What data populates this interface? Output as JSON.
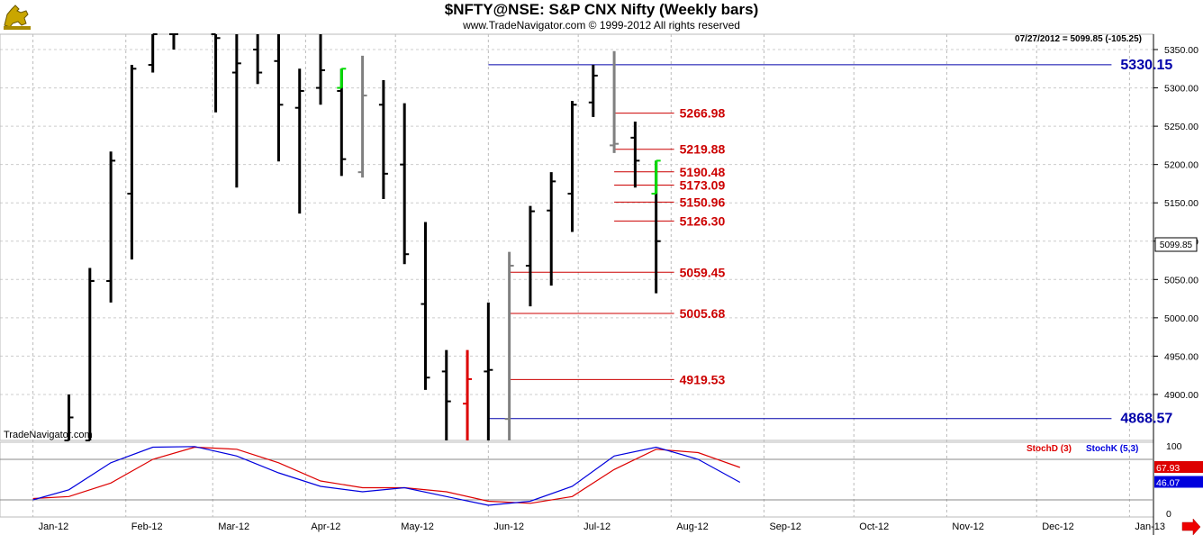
{
  "header": {
    "title": "$NFTY@NSE:  S&P CNX Nifty  (Weekly bars)",
    "subtitle": "www.TradeNavigator.com © 1999-2012 All rights reserved",
    "logo_icon": "gold-bull-icon"
  },
  "watermark": "TradeNavigator.com",
  "readout": "07/27/2012 = 5099.85 (-105.25)",
  "last_price_label": "5099.85",
  "chart_data": [
    {
      "type": "ohlc",
      "title": "$NFTY@NSE:  S&P CNX Nifty  (Weekly bars)",
      "ylim": [
        4840,
        5370
      ],
      "y_ticks": [
        4900,
        4950,
        5000,
        5050,
        5100,
        5150,
        5200,
        5250,
        5300,
        5350
      ],
      "y_tick_labels": [
        "4900.00",
        "4950.00",
        "5000.00",
        "5050.00",
        "5100.00",
        "5150.00",
        "5200.00",
        "5250.00",
        "5300.00",
        "5350.00"
      ],
      "x_ticks": [
        "2012-01-01",
        "2012-02-01",
        "2012-03-01",
        "2012-04-01",
        "2012-05-01",
        "2012-06-01",
        "2012-07-01",
        "2012-08-01",
        "2012-09-01",
        "2012-10-01",
        "2012-11-01",
        "2012-12-01",
        "2013-01-01"
      ],
      "x_tick_labels": [
        "Jan-12",
        "Feb-12",
        "Mar-12",
        "Apr-12",
        "May-12",
        "Jun-12",
        "Jul-12",
        "Aug-12",
        "Sep-12",
        "Oct-12",
        "Nov-12",
        "Dec-12",
        "Jan-13"
      ],
      "xlim": [
        "2011-12-21",
        "2013-01-09"
      ],
      "colors": {
        "up": "#000000",
        "gray": "#808080",
        "green": "#00dd00",
        "red": "#dd0000"
      },
      "bars": [
        {
          "date": "2012-01-13",
          "open": 4840,
          "high": 4900,
          "low": 4840,
          "close": 4870,
          "color": "up"
        },
        {
          "date": "2012-01-20",
          "open": 4840,
          "high": 5065,
          "low": 4840,
          "close": 5048,
          "color": "up"
        },
        {
          "date": "2012-01-27",
          "open": 5048,
          "high": 5217,
          "low": 5020,
          "close": 5205,
          "color": "up"
        },
        {
          "date": "2012-02-03",
          "open": 5162,
          "high": 5330,
          "low": 5076,
          "close": 5325,
          "color": "up"
        },
        {
          "date": "2012-02-10",
          "open": 5330,
          "high": 5370,
          "low": 5320,
          "close": 5370,
          "color": "up"
        },
        {
          "date": "2012-02-17",
          "open": 5370,
          "high": 5370,
          "low": 5350,
          "close": 5370,
          "color": "up"
        },
        {
          "date": "2012-03-02",
          "open": 5370,
          "high": 5370,
          "low": 5268,
          "close": 5365,
          "color": "up"
        },
        {
          "date": "2012-03-09",
          "open": 5320,
          "high": 5370,
          "low": 5170,
          "close": 5332,
          "color": "up"
        },
        {
          "date": "2012-03-16",
          "open": 5350,
          "high": 5370,
          "low": 5305,
          "close": 5320,
          "color": "up"
        },
        {
          "date": "2012-03-23",
          "open": 5335,
          "high": 5370,
          "low": 5204,
          "close": 5278,
          "color": "up"
        },
        {
          "date": "2012-03-30",
          "open": 5274,
          "high": 5325,
          "low": 5136,
          "close": 5296,
          "color": "up"
        },
        {
          "date": "2012-04-06",
          "open": 5300,
          "high": 5370,
          "low": 5278,
          "close": 5323,
          "color": "up"
        },
        {
          "date": "2012-04-13",
          "open": 5296,
          "high": 5325,
          "low": 5185,
          "close": 5207,
          "color": "up"
        },
        {
          "date": "2012-04-13",
          "open": 5300,
          "high": 5325,
          "low": 5300,
          "close": 5325,
          "color": "green"
        },
        {
          "date": "2012-04-20",
          "open": 5190,
          "high": 5342,
          "low": 5183,
          "close": 5290,
          "color": "gray"
        },
        {
          "date": "2012-04-27",
          "open": 5278,
          "high": 5310,
          "low": 5155,
          "close": 5188,
          "color": "up"
        },
        {
          "date": "2012-05-04",
          "open": 5200,
          "high": 5280,
          "low": 5070,
          "close": 5083,
          "color": "up"
        },
        {
          "date": "2012-05-11",
          "open": 5018,
          "high": 5125,
          "low": 4906,
          "close": 4922,
          "color": "up"
        },
        {
          "date": "2012-05-18",
          "open": 4930,
          "high": 4958,
          "low": 4840,
          "close": 4891,
          "color": "up"
        },
        {
          "date": "2012-05-25",
          "open": 4888,
          "high": 4958,
          "low": 4840,
          "close": 4920,
          "color": "red"
        },
        {
          "date": "2012-06-01",
          "open": 4930,
          "high": 5020,
          "low": 4840,
          "close": 4932,
          "color": "up"
        },
        {
          "date": "2012-06-08",
          "open": 4868,
          "high": 5086,
          "low": 4840,
          "close": 5068,
          "color": "gray"
        },
        {
          "date": "2012-06-15",
          "open": 5068,
          "high": 5146,
          "low": 5015,
          "close": 5139,
          "color": "up"
        },
        {
          "date": "2012-06-22",
          "open": 5140,
          "high": 5190,
          "low": 5042,
          "close": 5178,
          "color": "up"
        },
        {
          "date": "2012-06-29",
          "open": 5162,
          "high": 5283,
          "low": 5112,
          "close": 5278,
          "color": "up"
        },
        {
          "date": "2012-07-06",
          "open": 5281,
          "high": 5330,
          "low": 5262,
          "close": 5316,
          "color": "up"
        },
        {
          "date": "2012-07-13",
          "open": 5225,
          "high": 5348,
          "low": 5215,
          "close": 5227,
          "color": "gray"
        },
        {
          "date": "2012-07-20",
          "open": 5235,
          "high": 5256,
          "low": 5170,
          "close": 5205,
          "color": "up"
        },
        {
          "date": "2012-07-27",
          "open": 5162,
          "high": 5205,
          "low": 5032,
          "close": 5100,
          "color": "up"
        },
        {
          "date": "2012-07-27",
          "open": 5162,
          "high": 5205,
          "low": 5162,
          "close": 5205,
          "color": "green"
        }
      ],
      "levels": [
        {
          "value": 5330.15,
          "label": "5330.15",
          "color": "#0000aa",
          "from": "2012-06-01",
          "to": "2012-12-26"
        },
        {
          "value": 5266.98,
          "label": "5266.98",
          "color": "#cc0000",
          "from": "2012-07-13",
          "to": "2012-08-02"
        },
        {
          "value": 5219.88,
          "label": "5219.88",
          "color": "#cc0000",
          "from": "2012-07-13",
          "to": "2012-08-02"
        },
        {
          "value": 5190.48,
          "label": "5190.48",
          "color": "#cc0000",
          "from": "2012-07-13",
          "to": "2012-08-02"
        },
        {
          "value": 5173.09,
          "label": "5173.09",
          "color": "#cc0000",
          "from": "2012-07-13",
          "to": "2012-08-02"
        },
        {
          "value": 5150.96,
          "label": "5150.96",
          "color": "#cc0000",
          "from": "2012-07-13",
          "to": "2012-08-02"
        },
        {
          "value": 5126.3,
          "label": "5126.30",
          "color": "#cc0000",
          "from": "2012-07-13",
          "to": "2012-08-02"
        },
        {
          "value": 5059.45,
          "label": "5059.45",
          "color": "#cc0000",
          "from": "2012-06-08",
          "to": "2012-08-02"
        },
        {
          "value": 5005.68,
          "label": "5005.68",
          "color": "#cc0000",
          "from": "2012-06-08",
          "to": "2012-08-02"
        },
        {
          "value": 4919.53,
          "label": "4919.53",
          "color": "#cc0000",
          "from": "2012-06-08",
          "to": "2012-08-02"
        },
        {
          "value": 4868.57,
          "label": "4868.57",
          "color": "#0000aa",
          "from": "2012-06-01",
          "to": "2012-12-26"
        }
      ]
    },
    {
      "type": "line",
      "ylim": [
        0,
        100
      ],
      "y_ticks": [
        0,
        100
      ],
      "y_tick_labels": [
        "0",
        "100"
      ],
      "reference_lines": [
        80,
        20
      ],
      "legend": [
        "StochD (3)",
        "StochK (5,3)"
      ],
      "legend_placement": "top-right",
      "series": [
        {
          "name": "StochD (3)",
          "color": "#dd0000",
          "last_label": "67.93",
          "points": [
            [
              "2012-01-01",
              22
            ],
            [
              "2012-01-13",
              25
            ],
            [
              "2012-01-27",
              45
            ],
            [
              "2012-02-10",
              80
            ],
            [
              "2012-02-24",
              98
            ],
            [
              "2012-03-09",
              95
            ],
            [
              "2012-03-23",
              75
            ],
            [
              "2012-04-06",
              48
            ],
            [
              "2012-04-20",
              38
            ],
            [
              "2012-05-04",
              38
            ],
            [
              "2012-05-18",
              32
            ],
            [
              "2012-06-01",
              18
            ],
            [
              "2012-06-15",
              15
            ],
            [
              "2012-06-29",
              25
            ],
            [
              "2012-07-13",
              65
            ],
            [
              "2012-07-27",
              95
            ],
            [
              "2012-08-10",
              90
            ],
            [
              "2012-08-24",
              68
            ]
          ]
        },
        {
          "name": "StochK (5,3)",
          "color": "#0000dd",
          "last_label": "46.07",
          "points": [
            [
              "2012-01-01",
              20
            ],
            [
              "2012-01-13",
              35
            ],
            [
              "2012-01-27",
              75
            ],
            [
              "2012-02-10",
              98
            ],
            [
              "2012-02-24",
              99
            ],
            [
              "2012-03-09",
              85
            ],
            [
              "2012-03-23",
              60
            ],
            [
              "2012-04-06",
              40
            ],
            [
              "2012-04-20",
              32
            ],
            [
              "2012-05-04",
              38
            ],
            [
              "2012-05-18",
              25
            ],
            [
              "2012-06-01",
              12
            ],
            [
              "2012-06-15",
              18
            ],
            [
              "2012-06-29",
              40
            ],
            [
              "2012-07-13",
              85
            ],
            [
              "2012-07-27",
              98
            ],
            [
              "2012-08-10",
              80
            ],
            [
              "2012-08-24",
              46
            ]
          ]
        }
      ]
    }
  ]
}
